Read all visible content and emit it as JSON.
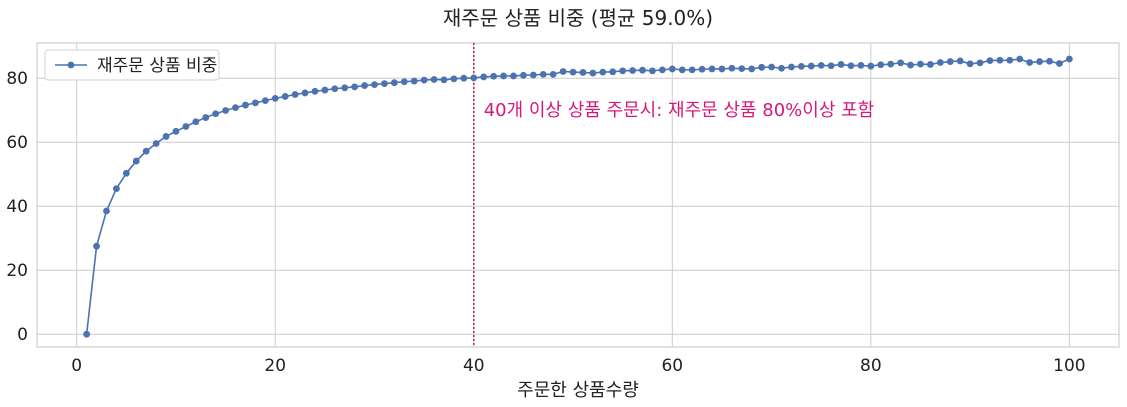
{
  "chart_data": {
    "type": "line",
    "title": "재주문 상품 비중 (평균 59.0%)",
    "xlabel": "주문한 상품수량",
    "ylabel": "",
    "xlim": [
      -4,
      105
    ],
    "ylim": [
      -4,
      91
    ],
    "xticks": [
      0,
      20,
      40,
      60,
      80,
      100
    ],
    "yticks": [
      0,
      20,
      40,
      60,
      80
    ],
    "grid": true,
    "legend_position": "top-left",
    "series": [
      {
        "name": "재주문 상품 비중",
        "color": "#4c72b0",
        "x": [
          1,
          2,
          3,
          4,
          5,
          6,
          7,
          8,
          9,
          10,
          11,
          12,
          13,
          14,
          15,
          16,
          17,
          18,
          19,
          20,
          21,
          22,
          23,
          24,
          25,
          26,
          27,
          28,
          29,
          30,
          31,
          32,
          33,
          34,
          35,
          36,
          37,
          38,
          39,
          40,
          41,
          42,
          43,
          44,
          45,
          46,
          47,
          48,
          49,
          50,
          51,
          52,
          53,
          54,
          55,
          56,
          57,
          58,
          59,
          60,
          61,
          62,
          63,
          64,
          65,
          66,
          67,
          68,
          69,
          70,
          71,
          72,
          73,
          74,
          75,
          76,
          77,
          78,
          79,
          80,
          81,
          82,
          83,
          84,
          85,
          86,
          87,
          88,
          89,
          90,
          91,
          92,
          93,
          94,
          95,
          96,
          97,
          98,
          99,
          100
        ],
        "y": [
          0,
          27.5,
          38.5,
          45.5,
          50.3,
          54.1,
          57.2,
          59.6,
          61.8,
          63.4,
          64.9,
          66.4,
          67.7,
          68.9,
          69.9,
          70.8,
          71.6,
          72.3,
          73.0,
          73.7,
          74.3,
          74.9,
          75.4,
          75.9,
          76.3,
          76.7,
          77.0,
          77.3,
          77.7,
          78.0,
          78.3,
          78.6,
          78.9,
          79.1,
          79.4,
          79.6,
          79.5,
          79.8,
          80.0,
          80.1,
          80.4,
          80.6,
          80.7,
          80.7,
          80.9,
          81.0,
          81.2,
          81.2,
          82.1,
          81.9,
          81.8,
          81.6,
          81.9,
          82.0,
          82.3,
          82.4,
          82.5,
          82.3,
          82.6,
          82.9,
          82.6,
          82.6,
          82.8,
          82.9,
          82.9,
          83.1,
          83.0,
          82.9,
          83.4,
          83.5,
          83.1,
          83.5,
          83.7,
          83.8,
          84.0,
          83.9,
          84.3,
          83.9,
          84.0,
          83.8,
          84.2,
          84.4,
          84.8,
          84.1,
          84.4,
          84.3,
          84.9,
          85.2,
          85.4,
          84.5,
          84.8,
          85.5,
          85.6,
          85.6,
          86.0,
          84.9,
          85.2,
          85.3,
          84.6,
          86.0
        ]
      }
    ],
    "vline": {
      "x": 40,
      "color": "#c71a5a",
      "style": "dotted"
    },
    "annotation": {
      "text": "40개 이상 상품 주문시: 재주문 상품 80%이상 포함",
      "x": 41,
      "y": 70,
      "color": "#d6187a"
    }
  }
}
